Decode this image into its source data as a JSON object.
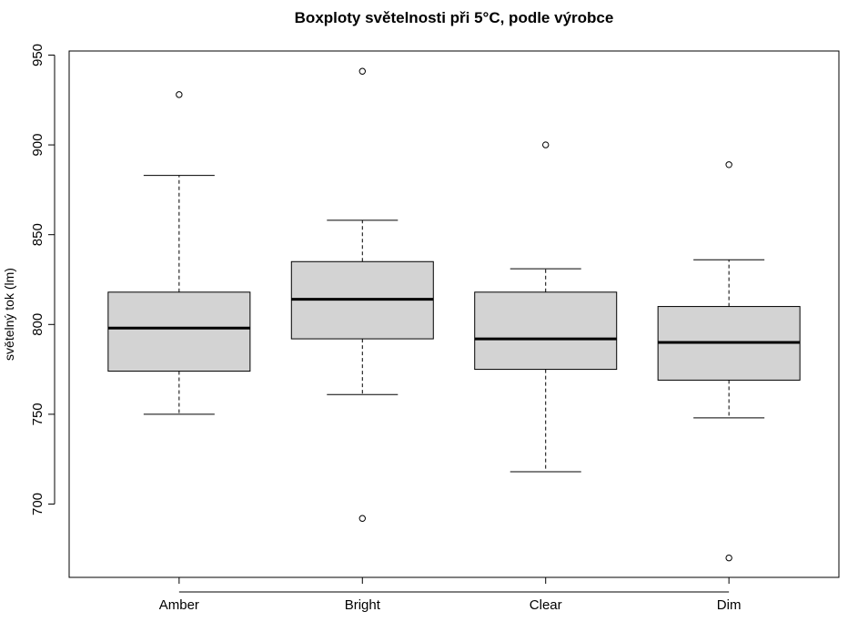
{
  "chart_data": {
    "type": "boxplot",
    "title": "Boxploty světelnosti při 5°C, podle výrobce",
    "xlabel": "",
    "ylabel": "světelný tok (lm)",
    "ylim": [
      665,
      950
    ],
    "y_ticks": [
      700,
      750,
      800,
      850,
      900,
      950
    ],
    "grid": false,
    "box_fill": "#d3d3d3",
    "categories": [
      "Amber",
      "Bright",
      "Clear",
      "Dim"
    ],
    "boxes": [
      {
        "category": "Amber",
        "whisker_low": 750,
        "q1": 774,
        "median": 798,
        "q3": 818,
        "whisker_high": 883,
        "outliers": [
          928
        ]
      },
      {
        "category": "Bright",
        "whisker_low": 761,
        "q1": 792,
        "median": 814,
        "q3": 835,
        "whisker_high": 858,
        "outliers": [
          941,
          692
        ]
      },
      {
        "category": "Clear",
        "whisker_low": 718,
        "q1": 775,
        "median": 792,
        "q3": 818,
        "whisker_high": 831,
        "outliers": [
          900
        ]
      },
      {
        "category": "Dim",
        "whisker_low": 748,
        "q1": 769,
        "median": 790,
        "q3": 810,
        "whisker_high": 836,
        "outliers": [
          889,
          670
        ]
      }
    ]
  }
}
